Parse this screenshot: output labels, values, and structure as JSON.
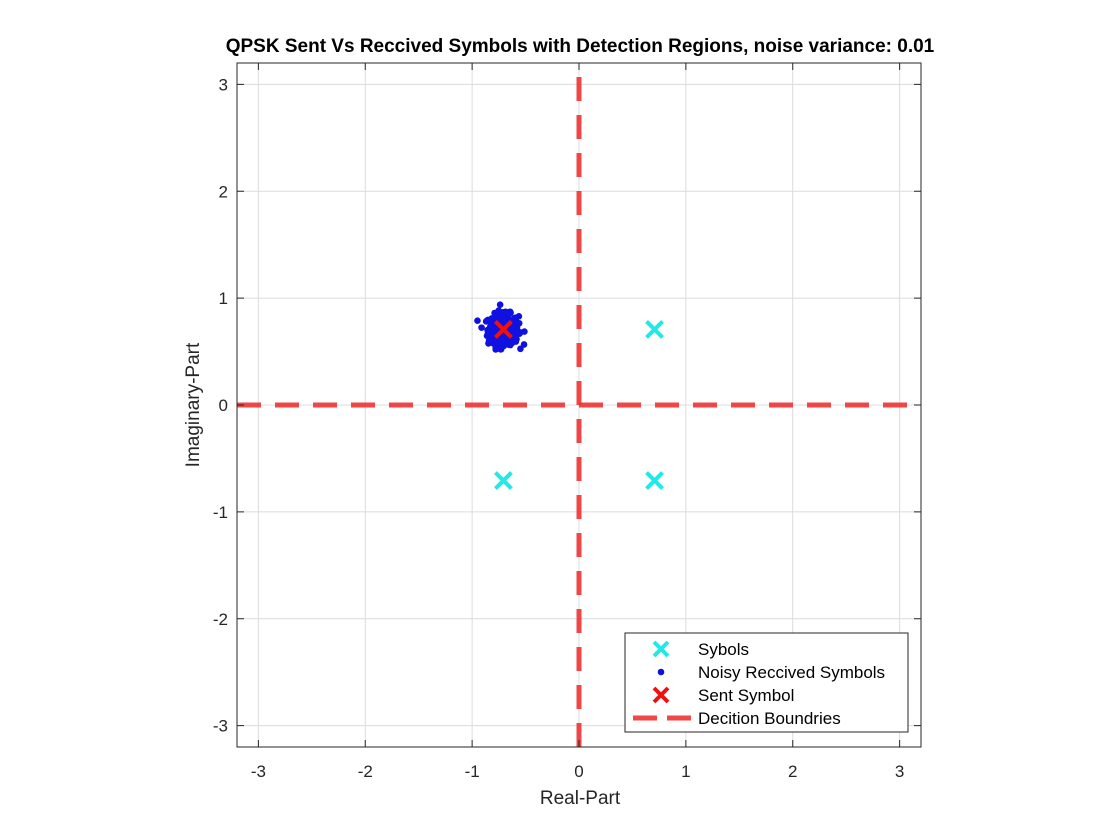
{
  "chart_data": {
    "type": "scatter",
    "title": "QPSK Sent Vs Reccived Symbols with Detection Regions, noise variance: 0.01",
    "xlabel": "Real-Part",
    "ylabel": "Imaginary-Part",
    "xlim": [
      -3.2,
      3.2
    ],
    "ylim": [
      -3.2,
      3.2
    ],
    "xticks": [
      -3,
      -2,
      -1,
      0,
      1,
      2,
      3
    ],
    "yticks": [
      -3,
      -2,
      -1,
      0,
      1,
      2,
      3
    ],
    "xtick_labels": [
      "-3",
      "-2",
      "-1",
      "0",
      "1",
      "2",
      "3"
    ],
    "ytick_labels": [
      "-3",
      "-2",
      "-1",
      "0",
      "1",
      "2",
      "3"
    ],
    "grid": true,
    "legend_position": "bottom-right",
    "series": [
      {
        "name": "Sybols",
        "marker": "x",
        "color": "#22e8e8",
        "x": [
          0.707,
          0.707,
          -0.707
        ],
        "y": [
          0.707,
          -0.707,
          -0.707
        ]
      },
      {
        "name": "Noisy Reccived Symbols",
        "marker": "dot",
        "color": "#1010e0",
        "center": [
          -0.707,
          0.707
        ],
        "noise_variance": 0.01,
        "x_range": [
          -0.95,
          -0.45
        ],
        "y_range": [
          0.52,
          0.96
        ]
      },
      {
        "name": "Sent Symbol",
        "marker": "x",
        "color": "#ee1111",
        "x": [
          -0.707
        ],
        "y": [
          0.707
        ]
      },
      {
        "name": "Decition Boundries",
        "marker": "dashed-line",
        "color": "#ee3333",
        "lines": [
          {
            "x": [
              -3.2,
              3.2
            ],
            "y": [
              0,
              0
            ]
          },
          {
            "x": [
              0,
              0
            ],
            "y": [
              -3.2,
              3.2
            ]
          }
        ]
      }
    ]
  }
}
